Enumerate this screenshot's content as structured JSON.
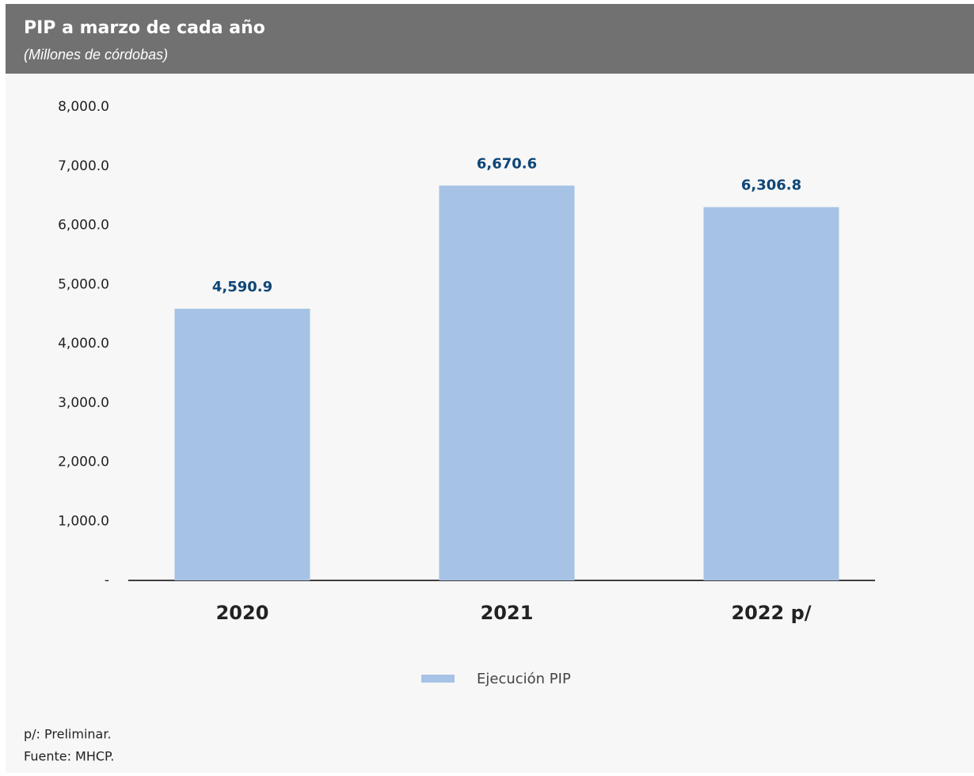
{
  "chart_data": {
    "type": "bar",
    "title": "PIP a marzo de cada año",
    "subtitle": "(Millones de córdobas)",
    "categories": [
      "2020",
      "2021",
      "2022 p/"
    ],
    "series": [
      {
        "name": "Ejecución PIP",
        "color": "#a6c3e5",
        "values": [
          4590.9,
          6670.6,
          6306.8
        ],
        "value_labels": [
          "4,590.9",
          "6,670.6",
          "6,306.8"
        ]
      }
    ],
    "ylim": [
      0,
      8000
    ],
    "yticks": [
      {
        "value": 0,
        "label": "-"
      },
      {
        "value": 1000,
        "label": "1,000.0"
      },
      {
        "value": 2000,
        "label": "2,000.0"
      },
      {
        "value": 3000,
        "label": "3,000.0"
      },
      {
        "value": 4000,
        "label": "4,000.0"
      },
      {
        "value": 5000,
        "label": "5,000.0"
      },
      {
        "value": 6000,
        "label": "6,000.0"
      },
      {
        "value": 7000,
        "label": "7,000.0"
      },
      {
        "value": 8000,
        "label": "8,000.0"
      }
    ],
    "grid": false,
    "legend": "bottom",
    "notes": [
      "p/: Preliminar.",
      "Fuente: MHCP."
    ]
  }
}
